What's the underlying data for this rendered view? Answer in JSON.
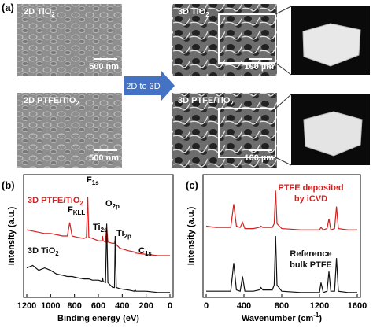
{
  "figure": {
    "panel_a": {
      "label": "(a)",
      "arrow": "2D to 3D",
      "images": [
        {
          "text": "2D TiO",
          "sub": "2",
          "scale": "500 nm"
        },
        {
          "text": "3D TiO",
          "sub": "2",
          "scale": "100 µm"
        },
        {
          "text": "2D PTFE/TiO",
          "sub": "2",
          "scale": "500 nm"
        },
        {
          "text": "3D PTFE/TiO",
          "sub": "2",
          "scale": "100 µm"
        }
      ]
    },
    "panel_b_label": "(b)",
    "panel_c_label": "(c)"
  },
  "chart_data": [
    {
      "type": "line",
      "xlabel": "Binding energy (eV)",
      "ylabel": "Intensity (a.u.)",
      "xlim": [
        1200,
        0
      ],
      "xticks": [
        1200,
        1000,
        800,
        600,
        400,
        200,
        0
      ],
      "ylim": [
        0,
        100
      ],
      "x": [
        1200,
        1150,
        1100,
        1050,
        1000,
        950,
        900,
        860,
        840,
        820,
        780,
        720,
        700,
        689,
        680,
        650,
        600,
        570,
        565,
        560,
        540,
        530,
        520,
        480,
        465,
        459,
        450,
        420,
        350,
        300,
        292,
        285,
        200,
        100,
        0
      ],
      "series": [
        {
          "name": {
            "text": "3D PTFE/TiO",
            "sub": "2"
          },
          "color": "#d42020",
          "values": [
            55,
            54,
            53,
            52,
            52,
            51,
            50,
            50,
            61,
            50,
            49,
            48,
            49,
            82,
            49,
            48,
            46,
            46,
            50,
            46,
            45,
            58,
            45,
            44,
            44,
            47,
            43,
            40,
            38,
            37,
            36,
            36,
            35,
            34,
            34
          ]
        },
        {
          "name": {
            "text": "3D TiO",
            "sub": "2"
          },
          "color": "#111111",
          "values": [
            24,
            26,
            22,
            24,
            22,
            19,
            18,
            17,
            17,
            17,
            16,
            15,
            15,
            15,
            15,
            14,
            14,
            13,
            16,
            13,
            12,
            60,
            12,
            8,
            8,
            50,
            8,
            7,
            6,
            5,
            6,
            5,
            5,
            4,
            4
          ]
        }
      ],
      "annotations": [
        {
          "text": "F",
          "sub": "1s"
        },
        {
          "text": "F",
          "sub": "KLL"
        },
        {
          "text": "O",
          "sub": "2p"
        },
        {
          "text": "Ti",
          "sub": "2s"
        },
        {
          "text": "Ti",
          "sub": "2p"
        },
        {
          "text": "C",
          "sub": "1s"
        }
      ]
    },
    {
      "type": "line",
      "xlabel": "Wavenumber (cm",
      "xlabel_sup": "-1",
      "xlabel_end": ")",
      "ylabel": "Intensity (a.u.)",
      "xlim": [
        0,
        1600
      ],
      "xticks": [
        0,
        400,
        800,
        1200,
        1600
      ],
      "ylim": [
        0,
        100
      ],
      "x": [
        0,
        100,
        200,
        260,
        292,
        320,
        360,
        385,
        410,
        500,
        560,
        580,
        600,
        700,
        720,
        735,
        750,
        800,
        1000,
        1150,
        1200,
        1216,
        1240,
        1280,
        1300,
        1320,
        1360,
        1380,
        1400,
        1500,
        1600
      ],
      "series": [
        {
          "name": [
            "PTFE deposited",
            "by iCVD"
          ],
          "color": "#d42020",
          "values": [
            58,
            57,
            57,
            57,
            76,
            58,
            57,
            61,
            56,
            56,
            57,
            58,
            57,
            57,
            60,
            87,
            60,
            56,
            55,
            55,
            55,
            57,
            55,
            56,
            64,
            55,
            56,
            74,
            56,
            55,
            55
          ]
        },
        {
          "name": [
            "Reference",
            "bulk PTFE"
          ],
          "color": "#111111",
          "values": [
            5,
            5,
            5,
            5,
            28,
            6,
            5,
            17,
            5,
            5,
            6,
            8,
            6,
            6,
            10,
            50,
            10,
            5,
            4,
            4,
            4,
            12,
            4,
            5,
            21,
            5,
            5,
            32,
            5,
            4,
            4
          ]
        }
      ]
    }
  ]
}
